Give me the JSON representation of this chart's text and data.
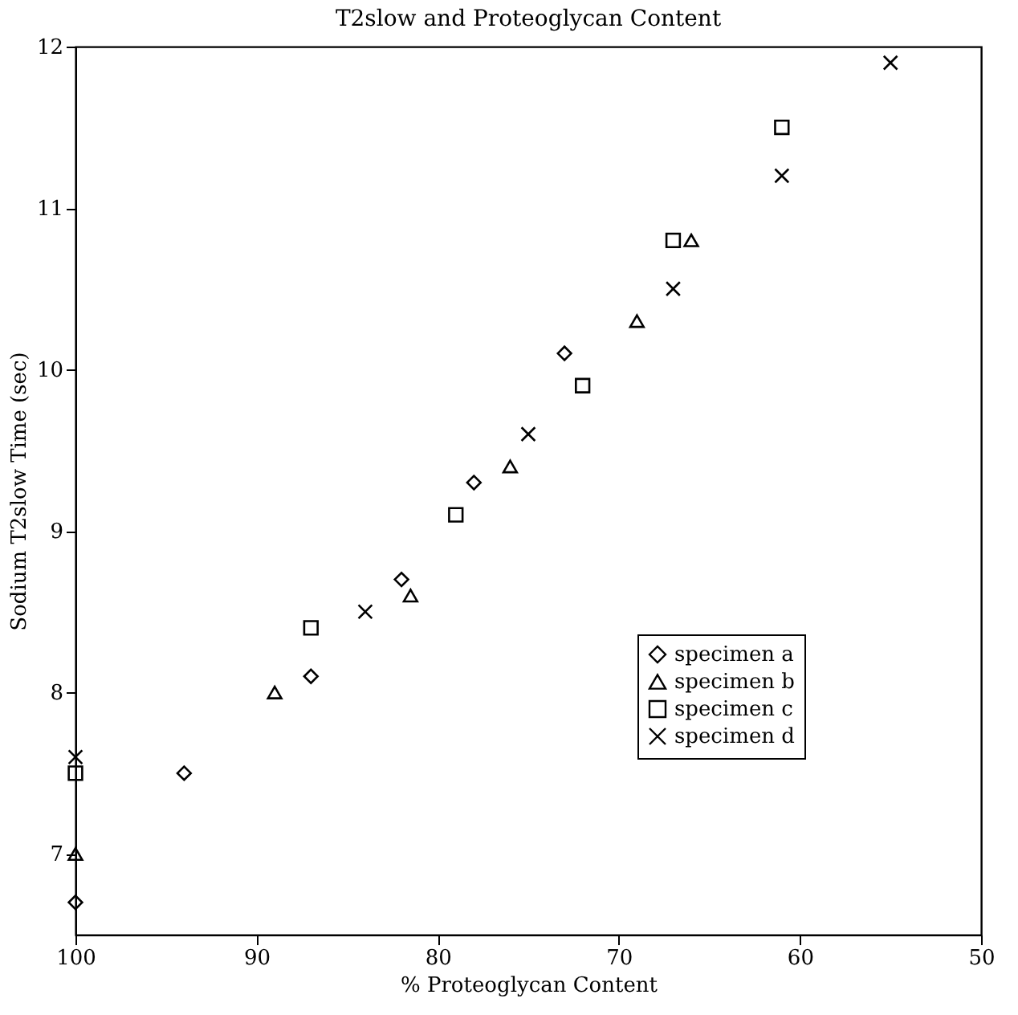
{
  "chart_data": {
    "type": "scatter",
    "title": "T2slow and Proteoglycan Content",
    "xlabel": "% Proteoglycan Content",
    "ylabel": "Sodium T2slow Time (sec)",
    "xlim": [
      100,
      50
    ],
    "xticks": [
      100,
      90,
      80,
      70,
      60,
      50
    ],
    "ylim": [
      6.5,
      12
    ],
    "yticks": [
      7,
      8,
      9,
      10,
      11,
      12
    ],
    "grid": false,
    "legend": "bottom right",
    "series": [
      {
        "name": "specimen a",
        "color": "#000000",
        "marker": "diamond",
        "x": [
          94,
          87,
          82,
          78,
          73,
          100
        ],
        "values": [
          7.5,
          8.1,
          8.7,
          9.3,
          10.1,
          6.7
        ]
      },
      {
        "name": "specimen b",
        "color": "#000000",
        "marker": "triangle",
        "x": [
          89,
          81.5,
          76,
          69,
          66,
          100
        ],
        "values": [
          8.0,
          8.6,
          9.4,
          10.3,
          10.8,
          7.0
        ]
      },
      {
        "name": "specimen c",
        "color": "#000000",
        "marker": "square",
        "x": [
          87,
          79,
          72,
          67,
          61,
          100
        ],
        "values": [
          8.4,
          9.1,
          9.9,
          10.8,
          11.5,
          7.5
        ]
      },
      {
        "name": "specimen d",
        "color": "#000000",
        "marker": "cross",
        "x": [
          84,
          75,
          67,
          61,
          55,
          100
        ],
        "values": [
          8.5,
          9.6,
          10.5,
          11.2,
          11.9,
          7.6
        ]
      }
    ]
  }
}
